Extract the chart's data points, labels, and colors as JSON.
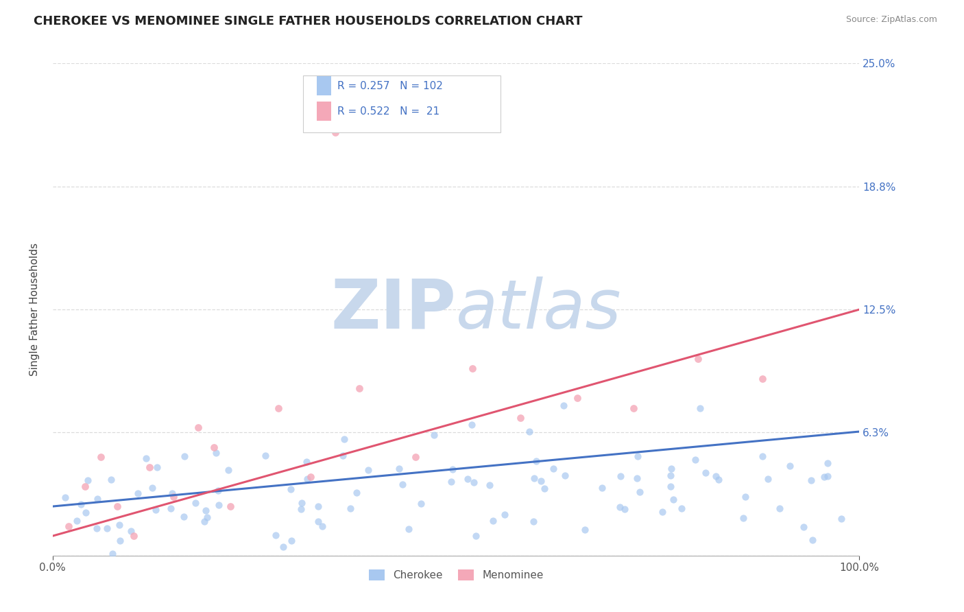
{
  "title": "CHEROKEE VS MENOMINEE SINGLE FATHER HOUSEHOLDS CORRELATION CHART",
  "source": "Source: ZipAtlas.com",
  "ylabel": "Single Father Households",
  "cherokee_R": 0.257,
  "cherokee_N": 102,
  "menominee_R": 0.522,
  "menominee_N": 21,
  "cherokee_color": "#A8C8F0",
  "menominee_color": "#F4A8B8",
  "cherokee_line_color": "#4472C4",
  "menominee_line_color": "#E05570",
  "xlim": [
    0,
    100
  ],
  "ylim": [
    0,
    25
  ],
  "yticks": [
    0,
    6.25,
    12.5,
    18.75,
    25.0
  ],
  "ytick_labels": [
    "",
    "6.3%",
    "12.5%",
    "18.8%",
    "25.0%"
  ],
  "xtick_labels": [
    "0.0%",
    "100.0%"
  ],
  "watermark_zip": "ZIP",
  "watermark_atlas": "atlas",
  "watermark_color_zip": "#C8D8EC",
  "watermark_color_atlas": "#C8D8EC",
  "background_color": "#FFFFFF",
  "legend_cherokee_label": "Cherokee",
  "legend_menominee_label": "Menominee",
  "title_fontsize": 13,
  "axis_label_fontsize": 11,
  "tick_fontsize": 11,
  "grid_color": "#BBBBBB",
  "grid_style": "--",
  "grid_alpha": 0.5
}
